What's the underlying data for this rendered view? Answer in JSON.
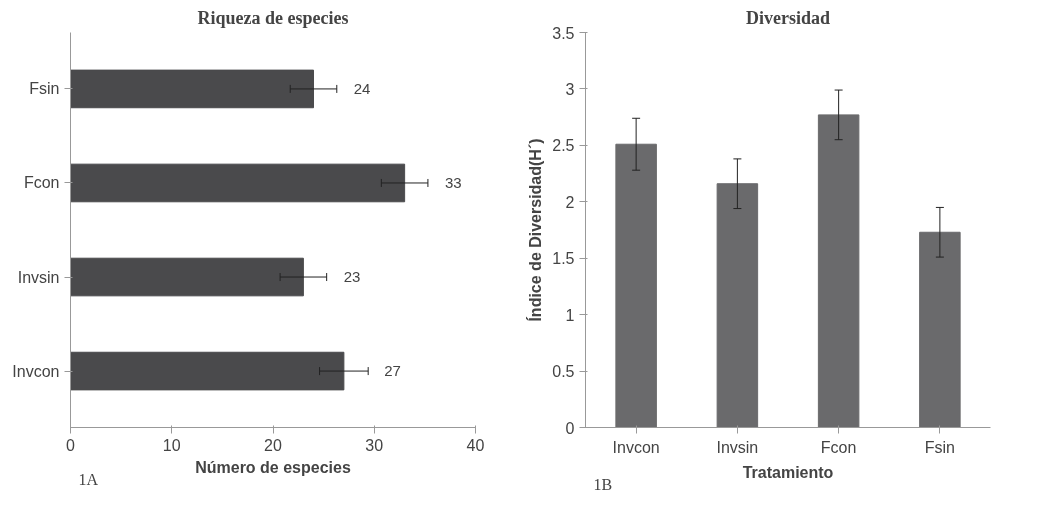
{
  "chart_data": [
    {
      "type": "bar",
      "orientation": "horizontal",
      "title": "Riqueza de especies",
      "xlabel": "Número de especies",
      "categories": [
        "Fsin",
        "Fcon",
        "Invsin",
        "Invcon"
      ],
      "values": [
        24,
        33,
        23,
        27
      ],
      "errors": [
        2.3,
        2.3,
        2.3,
        2.4
      ],
      "color": "#4a4a4c",
      "xlim": [
        0,
        40
      ],
      "xticks": [
        0,
        10,
        20,
        30,
        40
      ],
      "data_labels": true,
      "annotations": [
        "1A"
      ]
    },
    {
      "type": "bar",
      "title": "Diversidad",
      "xlabel": "Tratamiento",
      "ylabel": "Índice de Diversidad(H´)",
      "categories": [
        "Invcon",
        "Invsin",
        "Fcon",
        "Fsin"
      ],
      "values": [
        2.51,
        2.16,
        2.77,
        1.73
      ],
      "errors": [
        0.23,
        0.22,
        0.22,
        0.22
      ],
      "color": "#6a6a6c",
      "ylim": [
        0,
        3.5
      ],
      "yticks": [
        0,
        0.5,
        1,
        1.5,
        2,
        2.5,
        3,
        3.5
      ],
      "annotations": [
        "1B"
      ]
    }
  ]
}
